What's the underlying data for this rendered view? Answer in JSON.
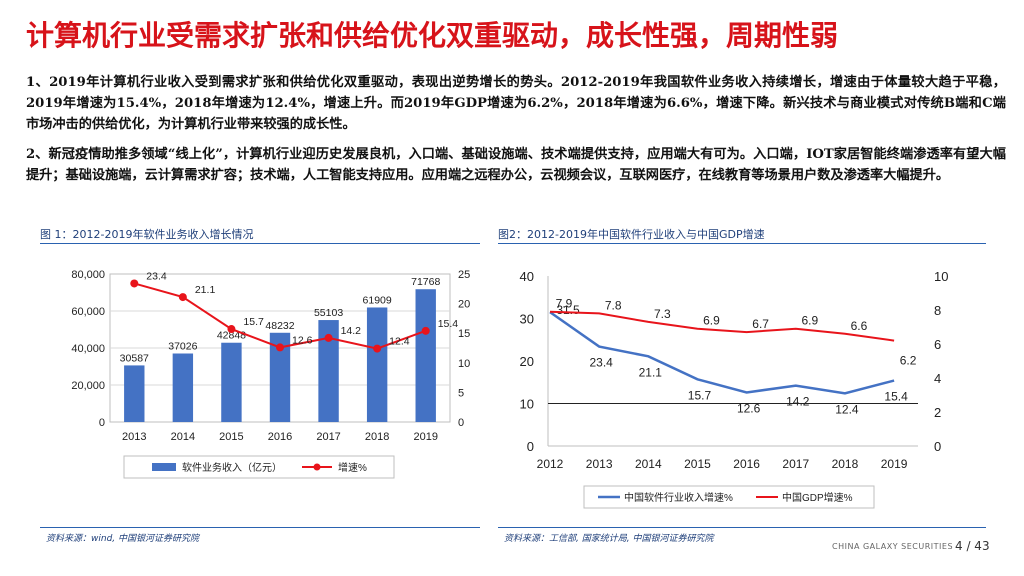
{
  "header": {
    "title": "计算机行业受需求扩张和供给优化双重驱动，成长性强，周期性弱"
  },
  "body": {
    "paragraph1": "1、2019年计算机行业收入受到需求扩张和供给优化双重驱动，表现出逆势增长的势头。2012-2019年我国软件业务收入持续增长，增速由于体量较大趋于平稳，2019年增速为15.4%，2018年增速为12.4%，增速上升。而2019年GDP增速为6.2%，2018年增速为6.6%，增速下降。新兴技术与商业模式对传统B端和C端市场冲击的供给优化，为计算机行业带来较强的成长性。",
    "paragraph2": "2、新冠疫情助推多领域“线上化”，计算机行业迎历史发展良机，入口端、基础设施端、技术端提供支持，应用端大有可为。入口端，IOT家居智能终端渗透率有望大幅提升；基础设施端，云计算需求扩容；技术端，人工智能支持应用。应用端之远程办公，云视频会议，互联网医疗，在线教育等场景用户数及渗透率大幅提升。"
  },
  "figure1": {
    "caption": "图 1：2012-2019年软件业务收入增长情况",
    "source": "资料来源：wind, 中国银河证券研究院"
  },
  "figure2": {
    "caption": "图2：2012-2019年中国软件行业收入与中国GDP增速",
    "source": "资料来源：工信部, 国家统计局, 中国银河证券研究院"
  },
  "footer": {
    "brand": "CHINA GALAXY SECURITIES",
    "page": "4 / 43"
  },
  "chart_data": [
    {
      "type": "bar",
      "title": "",
      "categories": [
        "2013",
        "2014",
        "2015",
        "2016",
        "2017",
        "2018",
        "2019"
      ],
      "series": [
        {
          "name": "软件业务收入（亿元）",
          "type": "bar",
          "axis": "left",
          "color": "#4472c4",
          "values": [
            30587,
            37026,
            42848,
            48232,
            55103,
            61909,
            71768
          ]
        },
        {
          "name": "增速%",
          "type": "line",
          "axis": "right",
          "color": "#e8141b",
          "values": [
            23.4,
            21.1,
            15.7,
            12.6,
            14.2,
            12.4,
            15.4
          ]
        }
      ],
      "y_left": {
        "min": 0,
        "max": 80000,
        "ticks": [
          "0",
          "20,000",
          "40,000",
          "60,000",
          "80,000"
        ]
      },
      "y_right": {
        "min": 0,
        "max": 25,
        "ticks": [
          "0",
          "5",
          "10",
          "15",
          "20",
          "25"
        ]
      },
      "legend_position": "bottom"
    },
    {
      "type": "line",
      "title": "",
      "categories": [
        "2012",
        "2013",
        "2014",
        "2015",
        "2016",
        "2017",
        "2018",
        "2019"
      ],
      "series": [
        {
          "name": "中国软件行业收入增速%",
          "axis": "left",
          "color": "#4472c4",
          "values": [
            31.5,
            23.4,
            21.1,
            15.7,
            12.6,
            14.2,
            12.4,
            15.4
          ],
          "labels": [
            "31.5",
            "23.4",
            "21.1",
            "15.7",
            "12.6",
            "14.2",
            "12.4",
            "15.4"
          ]
        },
        {
          "name": "中国GDP增速%",
          "axis": "right",
          "color": "#e8141b",
          "values": [
            7.9,
            7.8,
            7.3,
            6.9,
            6.7,
            6.9,
            6.6,
            6.2
          ],
          "labels": [
            "7.9",
            "7.8",
            "7.3",
            "6.9",
            "6.7",
            "6.9",
            "6.6",
            "6.2"
          ]
        }
      ],
      "y_left": {
        "min": 0,
        "max": 40,
        "ticks": [
          "0",
          "10",
          "20",
          "30",
          "40"
        ]
      },
      "y_right": {
        "min": 0,
        "max": 10,
        "ticks": [
          "0",
          "2",
          "4",
          "6",
          "8",
          "10"
        ]
      },
      "legend_position": "bottom"
    }
  ]
}
